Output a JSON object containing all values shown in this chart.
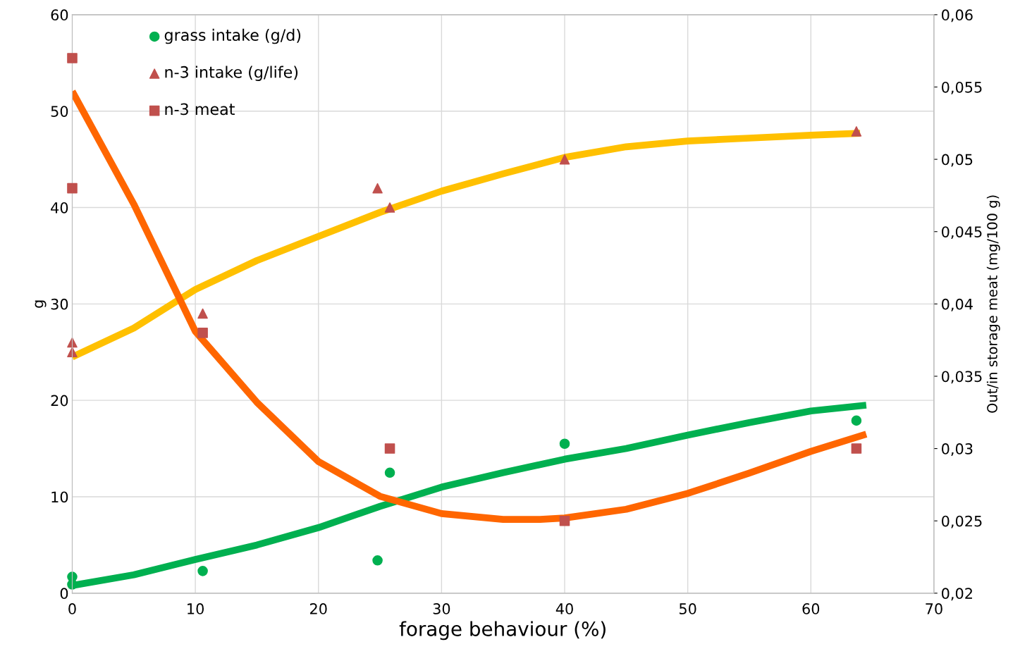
{
  "chart_data": {
    "type": "scatter",
    "xlabel": "forage behaviour (%)",
    "ylabel": "g",
    "y2label": "Out/in storage meat (mg/100 g)",
    "xlim": [
      0,
      70
    ],
    "xticks": [
      0,
      10,
      20,
      30,
      40,
      50,
      60,
      70
    ],
    "ylim": [
      0,
      60
    ],
    "yticks": [
      0,
      10,
      20,
      30,
      40,
      50,
      60
    ],
    "y2lim": [
      0.02,
      0.06
    ],
    "y2ticks": [
      {
        "value": 0.02,
        "label": "0,02"
      },
      {
        "value": 0.025,
        "label": "0,025"
      },
      {
        "value": 0.03,
        "label": "0,03"
      },
      {
        "value": 0.035,
        "label": "0,035"
      },
      {
        "value": 0.04,
        "label": "0,04"
      },
      {
        "value": 0.045,
        "label": "0,045"
      },
      {
        "value": 0.05,
        "label": "0,05"
      },
      {
        "value": 0.055,
        "label": "0,055"
      },
      {
        "value": 0.06,
        "label": "0,06"
      }
    ],
    "grid": true,
    "legend": "top left",
    "series": [
      {
        "type": "line",
        "color": "#ffc000",
        "x": [
          0,
          5,
          10,
          15,
          20,
          25,
          30,
          35,
          40,
          45,
          50,
          55,
          60,
          64
        ],
        "values": [
          24.5,
          27.5,
          31.5,
          34.5,
          37,
          39.5,
          41.7,
          43.5,
          45.2,
          46.3,
          46.9,
          47.2,
          47.5,
          47.7
        ]
      },
      {
        "type": "line",
        "color": "#00b050",
        "x": [
          0,
          5,
          10,
          15,
          20,
          25,
          30,
          35,
          40,
          45,
          50,
          55,
          60,
          64.5
        ],
        "values": [
          0.8,
          1.9,
          3.5,
          5,
          6.8,
          9,
          11,
          12.5,
          13.9,
          15,
          16.4,
          17.7,
          18.9,
          19.5
        ]
      },
      {
        "type": "line",
        "color": "#ff6600",
        "axis": "y2",
        "x": [
          0,
          5,
          10,
          15,
          20,
          25,
          30,
          35,
          38,
          40,
          45,
          50,
          55,
          60,
          64.5
        ],
        "values": [
          0.0547,
          0.0469,
          0.0381,
          0.0332,
          0.0291,
          0.0267,
          0.0255,
          0.0251,
          0.0251,
          0.0252,
          0.0258,
          0.0269,
          0.0283,
          0.0298,
          0.031
        ]
      },
      {
        "name": "grass intake (g/d)",
        "marker": "circle",
        "color": "#00b050",
        "x": [
          0,
          0,
          10.6,
          24.8,
          25.8,
          40,
          63.7
        ],
        "values": [
          1.7,
          0.9,
          2.3,
          3.4,
          12.5,
          15.5,
          17.9
        ]
      },
      {
        "name": "n-3 intake (g/life)",
        "marker": "triangle",
        "color": "#c0504d",
        "x": [
          0,
          0,
          10.6,
          24.8,
          25.8,
          40,
          63.7
        ],
        "values": [
          26,
          25,
          29,
          42,
          40,
          45,
          47.9
        ]
      },
      {
        "name": "n-3 meat",
        "marker": "square",
        "color": "#c0504d",
        "axis": "y2",
        "x": [
          0,
          0,
          10.6,
          25.8,
          40,
          63.7
        ],
        "values": [
          0.057,
          0.048,
          0.038,
          0.03,
          0.025,
          0.03
        ]
      }
    ]
  }
}
